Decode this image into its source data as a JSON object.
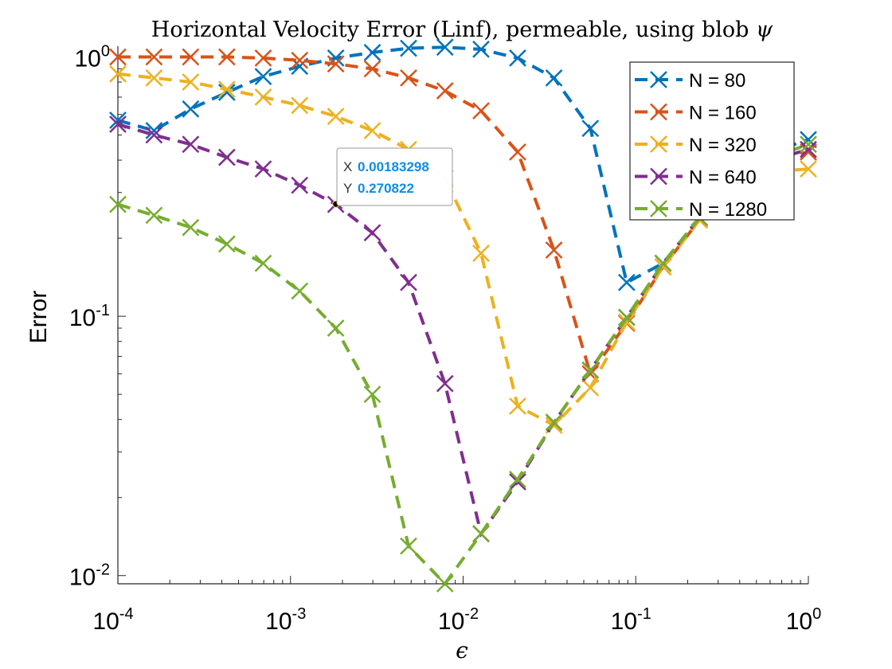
{
  "chart_data": {
    "type": "line",
    "title": "Horizontal Velocity Error (Linf), permeable, using blob ",
    "title_symbol": "ψ",
    "xlabel": "ϵ",
    "ylabel": "Error",
    "xscale": "log",
    "yscale": "log",
    "xlim": [
      0.0001,
      1
    ],
    "ylim": [
      0.0093,
      1.1
    ],
    "x_ticks": [
      {
        "base": "10",
        "exp": "-4",
        "value": 0.0001
      },
      {
        "base": "10",
        "exp": "-3",
        "value": 0.001
      },
      {
        "base": "10",
        "exp": "-2",
        "value": 0.01
      },
      {
        "base": "10",
        "exp": "-1",
        "value": 0.1
      },
      {
        "base": "10",
        "exp": "0",
        "value": 1
      }
    ],
    "y_ticks": [
      {
        "base": "10",
        "exp": "-2",
        "value": 0.01
      },
      {
        "base": "10",
        "exp": "-1",
        "value": 0.1
      },
      {
        "base": "10",
        "exp": "0",
        "value": 1
      }
    ],
    "grid": false,
    "legend_position": "top-right",
    "x": [
      0.0001,
      0.000162,
      0.000264,
      0.000428,
      0.000695,
      0.00113,
      0.00183,
      0.00298,
      0.00483,
      0.00785,
      0.0127,
      0.0207,
      0.0336,
      0.0546,
      0.0886,
      0.144,
      0.234,
      0.379,
      0.616,
      1.0
    ],
    "series": [
      {
        "name": "N = 80",
        "color": "#0072bd",
        "values": [
          0.57,
          0.52,
          0.63,
          0.73,
          0.84,
          0.92,
          0.99,
          1.04,
          1.08,
          1.09,
          1.07,
          0.99,
          0.83,
          0.53,
          0.135,
          0.16,
          0.24,
          0.33,
          0.43,
          0.48
        ]
      },
      {
        "name": "N = 160",
        "color": "#d95319",
        "values": [
          1.0,
          1.0,
          1.0,
          1.0,
          0.99,
          0.97,
          0.94,
          0.9,
          0.83,
          0.74,
          0.62,
          0.43,
          0.18,
          0.06,
          0.094,
          0.155,
          0.235,
          0.32,
          0.4,
          0.43
        ]
      },
      {
        "name": "N = 320",
        "color": "#edb120",
        "values": [
          0.86,
          0.83,
          0.8,
          0.75,
          0.7,
          0.65,
          0.59,
          0.52,
          0.44,
          0.34,
          0.175,
          0.045,
          0.038,
          0.053,
          0.095,
          0.155,
          0.235,
          0.31,
          0.36,
          0.37
        ]
      },
      {
        "name": "N = 640",
        "color": "#7e2f8e",
        "values": [
          0.55,
          0.5,
          0.46,
          0.41,
          0.37,
          0.32,
          0.27,
          0.21,
          0.135,
          0.055,
          0.0145,
          0.023,
          0.039,
          0.062,
          0.099,
          0.16,
          0.24,
          0.32,
          0.4,
          0.44
        ]
      },
      {
        "name": "N = 1280",
        "color": "#77ac30",
        "values": [
          0.27,
          0.245,
          0.22,
          0.19,
          0.16,
          0.125,
          0.09,
          0.05,
          0.013,
          0.0093,
          0.0145,
          0.0235,
          0.039,
          0.062,
          0.099,
          0.16,
          0.24,
          0.33,
          0.41,
          0.46
        ]
      }
    ],
    "datatip": {
      "x_label": "X",
      "x_value": "0.00183298",
      "y_label": "Y",
      "y_value": "0.270822",
      "x": 0.00183298,
      "y": 0.270822
    }
  }
}
